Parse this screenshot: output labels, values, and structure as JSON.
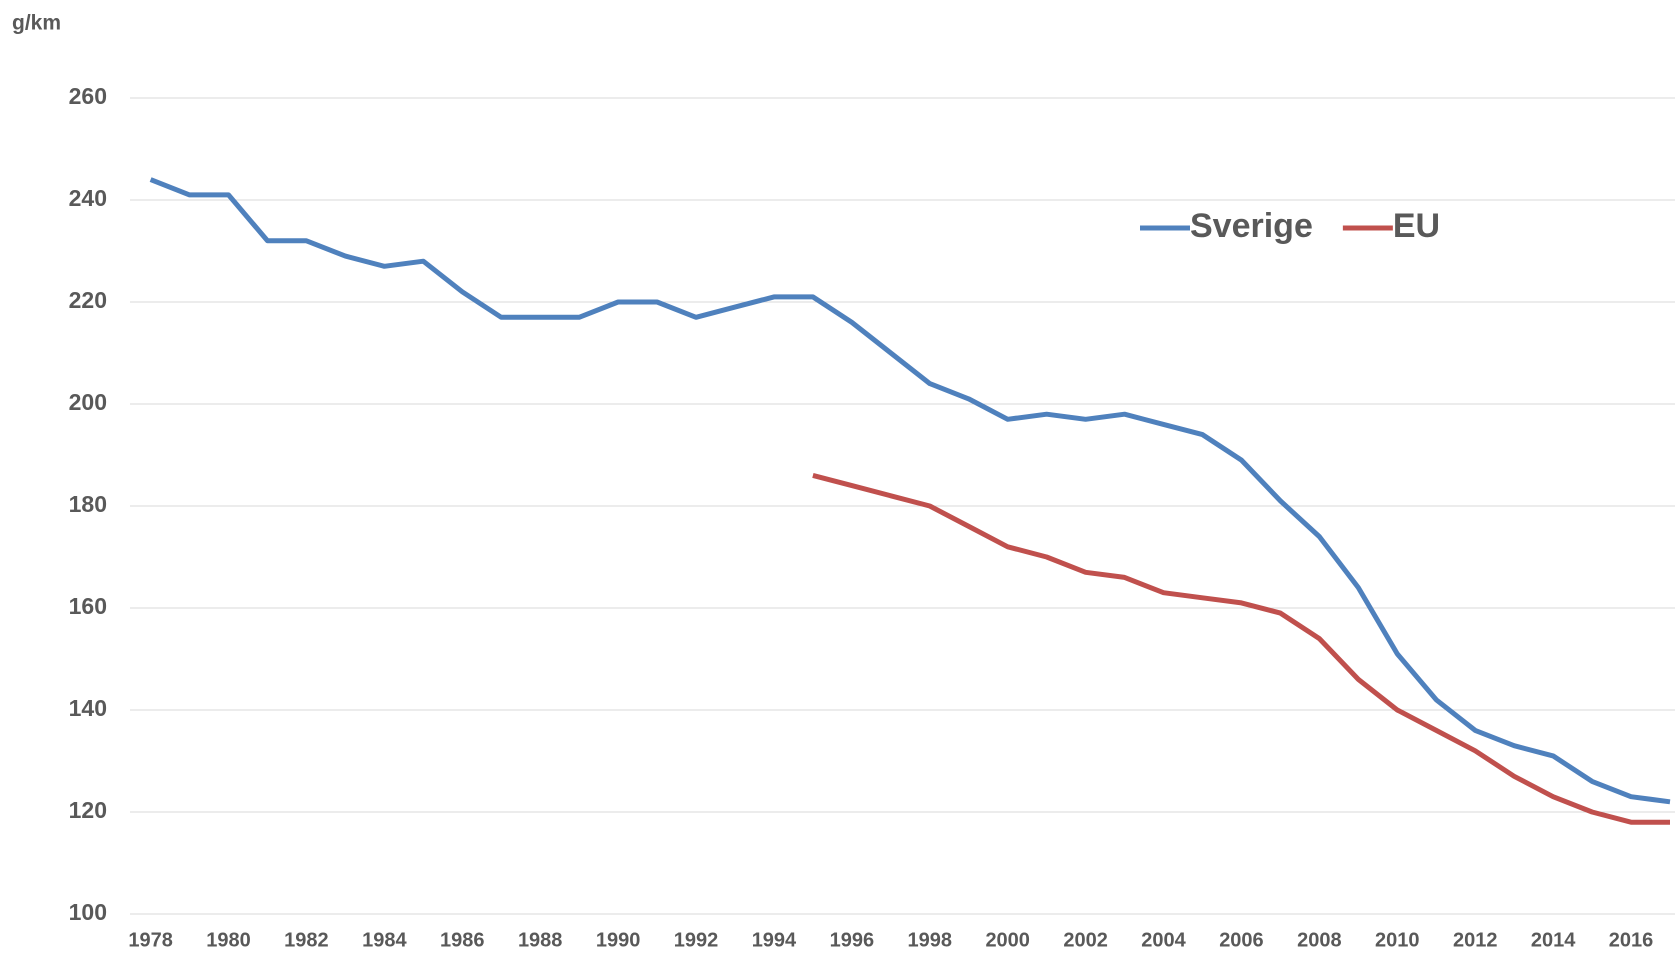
{
  "chart_data": {
    "type": "line",
    "ylabel": "g/km",
    "x": [
      1978,
      1979,
      1980,
      1981,
      1982,
      1983,
      1984,
      1985,
      1986,
      1987,
      1988,
      1989,
      1990,
      1991,
      1992,
      1993,
      1994,
      1995,
      1996,
      1997,
      1998,
      1999,
      2000,
      2001,
      2002,
      2003,
      2004,
      2005,
      2006,
      2007,
      2008,
      2009,
      2010,
      2011,
      2012,
      2013,
      2014,
      2015,
      2016,
      2017
    ],
    "series": [
      {
        "name": "Sverige",
        "color": "#4f81bd",
        "values": [
          244,
          241,
          241,
          232,
          232,
          229,
          227,
          228,
          222,
          217,
          217,
          217,
          220,
          220,
          217,
          219,
          221,
          221,
          216,
          210,
          204,
          201,
          197,
          198,
          197,
          198,
          196,
          194,
          189,
          181,
          174,
          164,
          151,
          142,
          136,
          133,
          131,
          126,
          123,
          122
        ]
      },
      {
        "name": "EU",
        "color": "#c0504d",
        "values": [
          null,
          null,
          null,
          null,
          null,
          null,
          null,
          null,
          null,
          null,
          null,
          null,
          null,
          null,
          null,
          null,
          null,
          186,
          184,
          182,
          180,
          176,
          172,
          170,
          167,
          166,
          163,
          162,
          161,
          159,
          154,
          146,
          140,
          136,
          132,
          127,
          123,
          120,
          118,
          118
        ]
      }
    ],
    "xlim": [
      1978,
      2017
    ],
    "xticks": [
      1978,
      1980,
      1982,
      1984,
      1986,
      1988,
      1990,
      1992,
      1994,
      1996,
      1998,
      2000,
      2002,
      2004,
      2006,
      2008,
      2010,
      2012,
      2014,
      2016
    ],
    "ylim": [
      100,
      260
    ],
    "yticks": [
      100,
      120,
      140,
      160,
      180,
      200,
      220,
      240,
      260
    ],
    "grid": true,
    "legend": "top-right"
  }
}
